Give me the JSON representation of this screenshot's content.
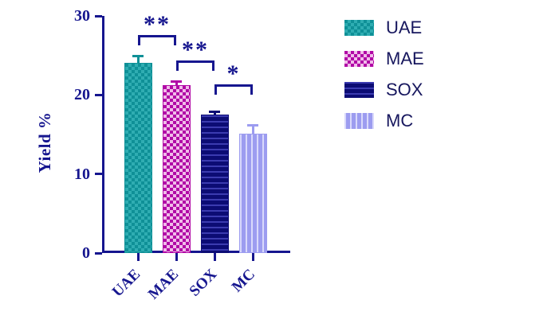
{
  "chart_data": {
    "type": "bar",
    "ylabel": "Yield %",
    "ylim": [
      0,
      30
    ],
    "yticks": [
      0,
      10,
      20,
      30
    ],
    "categories": [
      "UAE",
      "MAE",
      "SOX",
      "MC"
    ],
    "values": [
      24.1,
      21.2,
      17.5,
      15.1
    ],
    "errors": [
      0.9,
      0.5,
      0.4,
      1.1
    ],
    "bar_styles": [
      {
        "pattern": "checker",
        "main": "#0f9097",
        "alt": "#2fadb2"
      },
      {
        "pattern": "checker",
        "main": "#b109a6",
        "alt": "#f0bce9"
      },
      {
        "pattern": "hstripe",
        "main": "#0c0c74",
        "alt": "#3b3bb0"
      },
      {
        "pattern": "vstripe",
        "main": "#9c9cf0",
        "alt": "#d9d9fb"
      }
    ],
    "significance": [
      {
        "from": 0,
        "to": 1,
        "label": "**",
        "y": 27.6
      },
      {
        "from": 1,
        "to": 2,
        "label": "**",
        "y": 24.4
      },
      {
        "from": 2,
        "to": 3,
        "label": "*",
        "y": 21.3
      }
    ],
    "legend": [
      "UAE",
      "MAE",
      "SOX",
      "MC"
    ],
    "axis_color": "#16168f",
    "text_color": "#16168f",
    "legend_text_color": "#17175e",
    "legend_position": "right",
    "grid": "off"
  }
}
